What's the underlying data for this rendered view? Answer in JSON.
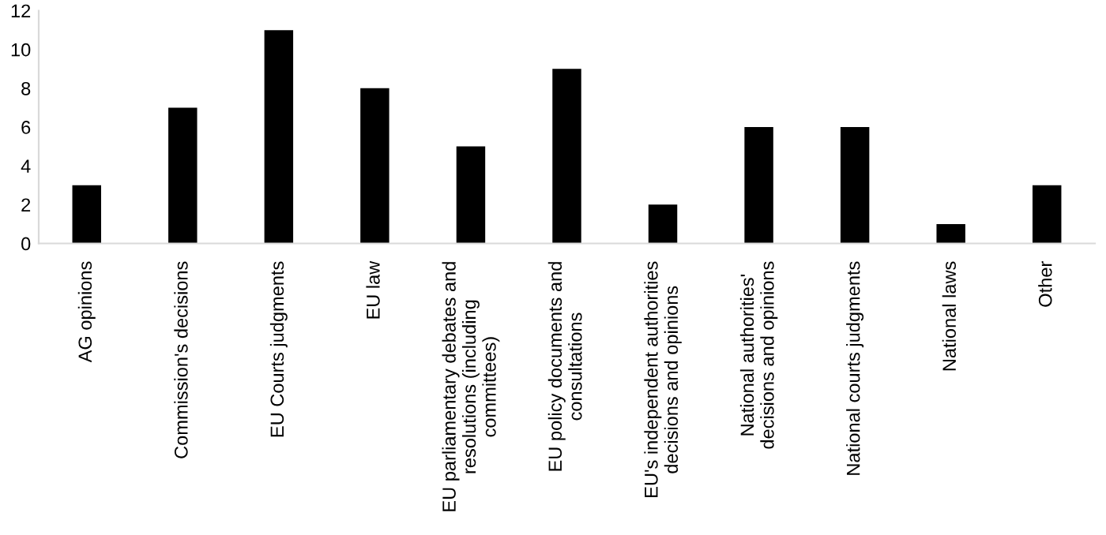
{
  "chart_data": {
    "type": "bar",
    "categories": [
      "AG opinions",
      "Commission's decisions",
      "EU Courts judgments",
      "EU law",
      "EU parliamentary debates and resolutions (including committees)",
      "EU policy documents and consultations",
      "EU's independent authorities decisions and opinions",
      "National authorities' decisions and opinions",
      "National courts judgments",
      "National laws",
      "Other"
    ],
    "values": [
      3,
      7,
      11,
      8,
      5,
      9,
      2,
      6,
      6,
      1,
      3
    ],
    "color": "#000000",
    "ylim": [
      0,
      12
    ],
    "yticks": [
      0,
      2,
      4,
      6,
      8,
      10,
      12
    ],
    "grid": false
  }
}
